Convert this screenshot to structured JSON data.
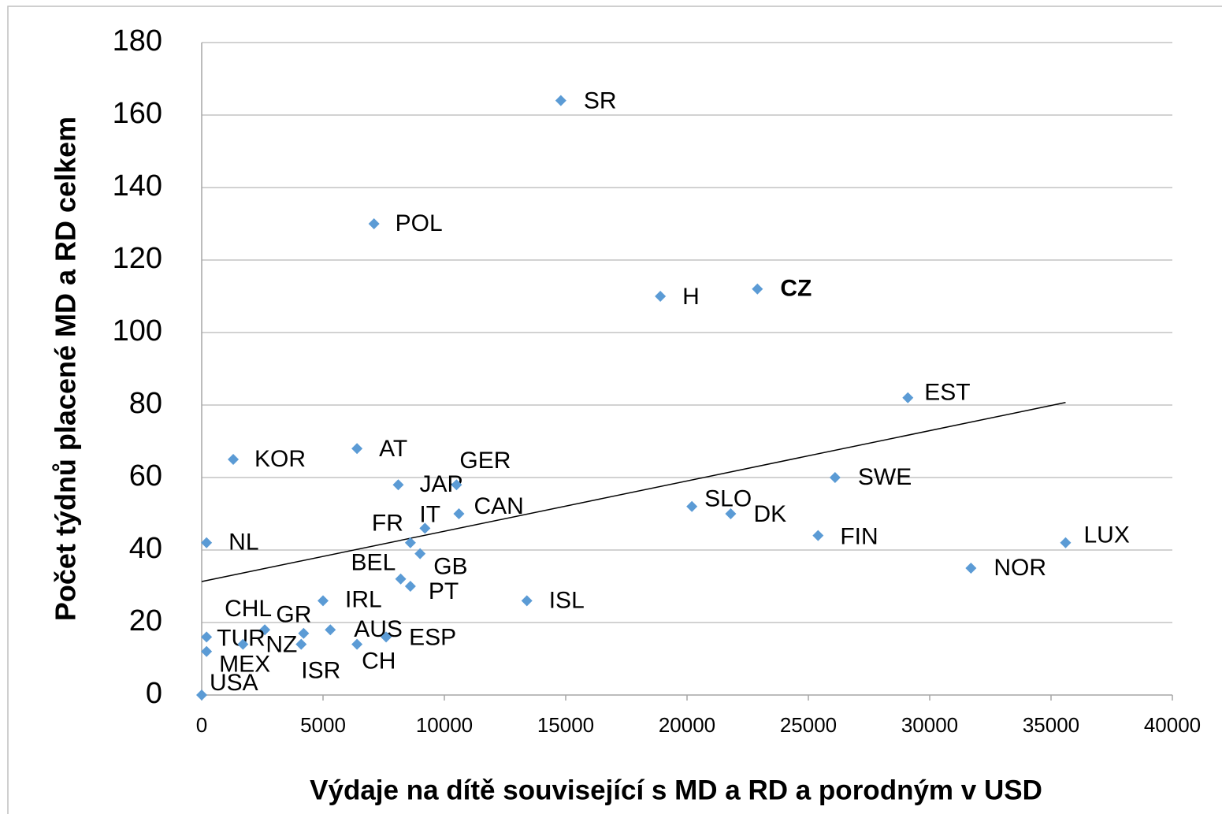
{
  "chart_data": {
    "type": "scatter",
    "x_label": "Výdaje na dítě související s MD a RD a porodným v USD",
    "y_label": "Počet týdnů placené MD a RD celkem",
    "labels": [
      "SR",
      "POL",
      "H",
      "CZ",
      "EST",
      "KOR",
      "AT",
      "JAP",
      "GER",
      "CAN",
      "IT",
      "FR",
      "GB",
      "BEL",
      "PT",
      "SLO",
      "DK",
      "SWE",
      "FIN",
      "LUX",
      "NOR",
      "ISL",
      "NL",
      "IRL",
      "CHL",
      "GR",
      "TUR",
      "NZ",
      "ISR",
      "AUS",
      "ESP",
      "CH",
      "MEX",
      "USA"
    ],
    "x": [
      14800,
      7100,
      18900,
      22900,
      29100,
      1300,
      6400,
      8100,
      10500,
      10600,
      9200,
      8600,
      9000,
      8200,
      8600,
      20200,
      21800,
      26100,
      25400,
      35600,
      31700,
      13400,
      200,
      5000,
      2600,
      4200,
      200,
      1700,
      4100,
      5300,
      7600,
      6400,
      200,
      0
    ],
    "y": [
      164,
      130,
      110,
      112,
      82,
      65,
      68,
      58,
      58,
      50,
      46,
      42,
      39,
      32,
      30,
      52,
      50,
      60,
      44,
      42,
      35,
      26,
      42,
      26,
      18,
      17,
      16,
      14,
      14,
      18,
      16,
      14,
      12,
      0
    ],
    "color": "#5b9bd5",
    "trendline": {
      "x": [
        0,
        35600
      ],
      "y": [
        31.3,
        80.7
      ],
      "color": "#000000"
    },
    "xlim": [
      0,
      40000
    ],
    "xticks": [
      0,
      5000,
      10000,
      15000,
      20000,
      25000,
      30000,
      35000,
      40000
    ],
    "ylim": [
      0,
      180
    ],
    "yticks": [
      0,
      20,
      40,
      60,
      80,
      100,
      120,
      140,
      160,
      180
    ],
    "grid": true
  }
}
